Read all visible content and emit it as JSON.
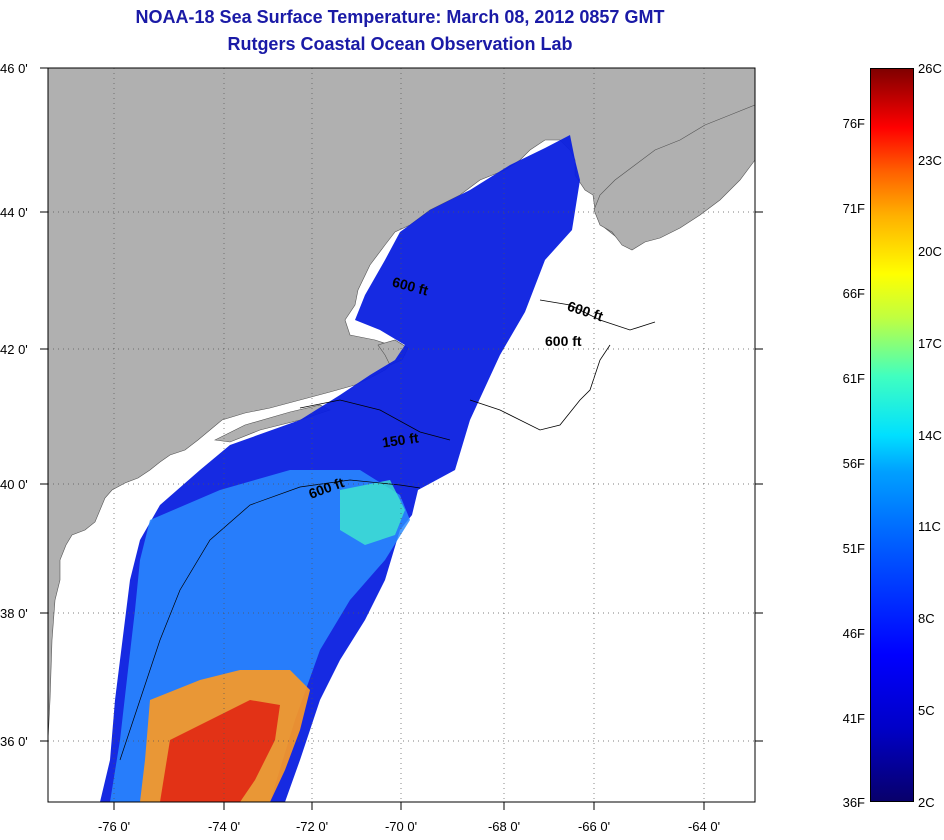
{
  "title": {
    "line1": "NOAA-18 Sea Surface Temperature:  March 08, 2012 0857 GMT",
    "line2": "Rutgers Coastal Ocean Observation Lab"
  },
  "lat_labels": [
    "46 0'",
    "44 0'",
    "42 0'",
    "40 0'",
    "38 0'",
    "36 0'"
  ],
  "lon_labels": [
    "-76 0'",
    "-74 0'",
    "-72 0'",
    "-70 0'",
    "-68 0'",
    "-66 0'",
    "-64 0'"
  ],
  "contour_labels": [
    "600 ft",
    "600 ft",
    "600 ft",
    "150 ft",
    "600 ft"
  ],
  "colorbar": {
    "f_labels": [
      "76F",
      "71F",
      "66F",
      "61F",
      "56F",
      "51F",
      "46F",
      "41F",
      "36F"
    ],
    "c_labels": [
      "26C",
      "23C",
      "20C",
      "17C",
      "14C",
      "11C",
      "8C",
      "5C",
      "2C"
    ]
  },
  "colors": {
    "land": "#b0b0b0",
    "water_cold": "#0a1fe0",
    "title": "#1a1aa6"
  }
}
